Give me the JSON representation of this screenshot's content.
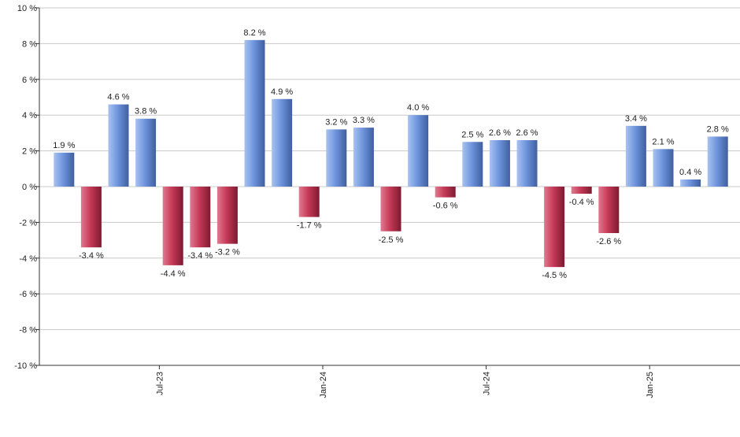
{
  "chart_data": {
    "type": "bar",
    "title": "",
    "xlabel": "",
    "ylabel": "",
    "ylim": [
      -10,
      10
    ],
    "y_ticks": [
      10,
      8,
      6,
      4,
      2,
      0,
      -2,
      -4,
      -6,
      -8,
      -10
    ],
    "y_tick_labels": [
      "10 %",
      "8 %",
      "6 %",
      "4 %",
      "2 %",
      "0 %",
      "-2 %",
      "-4 %",
      "-6 %",
      "-8 %",
      "-10 %"
    ],
    "grid": true,
    "x_tick_labels": [
      "Jul-23",
      "Jan-24",
      "Jul-24",
      "Jan-25"
    ],
    "x_tick_positions": [
      3.5,
      9.5,
      15.5,
      21.5
    ],
    "values": [
      1.9,
      -3.4,
      4.6,
      3.8,
      -4.4,
      -3.4,
      -3.2,
      8.2,
      4.9,
      -1.7,
      3.2,
      3.3,
      -2.5,
      4.0,
      -0.6,
      2.5,
      2.6,
      2.6,
      -4.5,
      -0.4,
      -2.6,
      3.4,
      2.1,
      0.4,
      2.8
    ],
    "value_labels": [
      "1.9 %",
      "-3.4 %",
      "4.6 %",
      "3.8 %",
      "-4.4 %",
      "-3.4 %",
      "-3.2 %",
      "8.2 %",
      "4.9 %",
      "-1.7 %",
      "3.2 %",
      "3.3 %",
      "-2.5 %",
      "4.0 %",
      "-0.6 %",
      "2.5 %",
      "2.6 %",
      "2.6 %",
      "-4.5 %",
      "-0.4 %",
      "-2.6 %",
      "3.4 %",
      "2.1 %",
      "0.4 %",
      "2.8 %"
    ],
    "colors": {
      "positive_light": "#a9c3f0",
      "positive_mid": "#6f95de",
      "positive_dark": "#3f5f9f",
      "negative_light": "#e07a90",
      "negative_mid": "#c63a58",
      "negative_dark": "#7d1a30",
      "grid": "#c8c8c8",
      "axis": "#333333"
    }
  }
}
